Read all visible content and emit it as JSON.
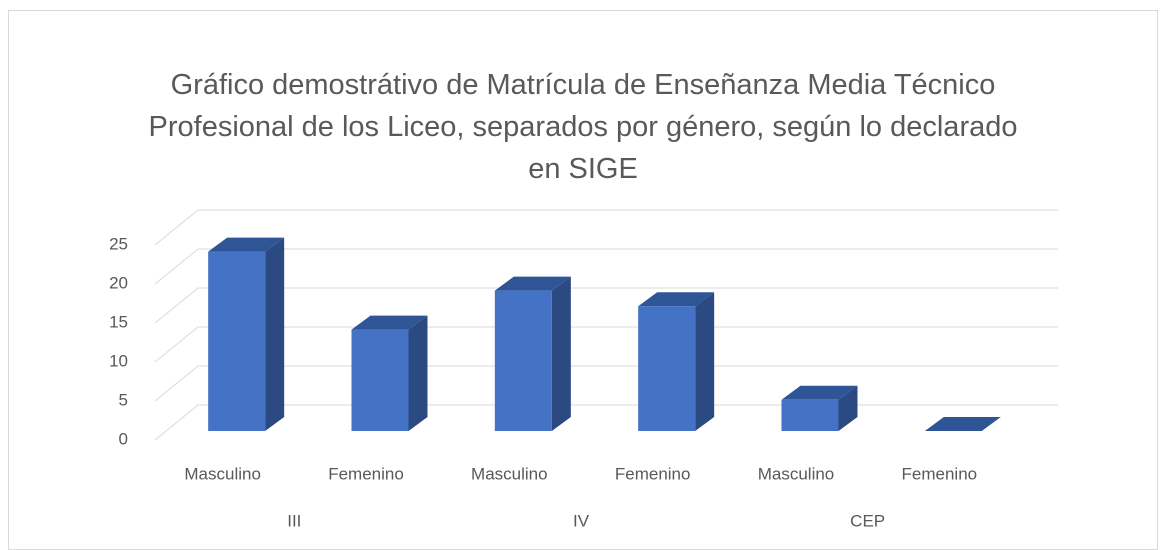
{
  "chart_data": {
    "type": "bar3d",
    "title": "Gráfico demostrátivo de Matrícula de Enseñanza Media Técnico Profesional de los Liceo, separados por género, según lo declarado en SIGE",
    "categories": [
      "Masculino",
      "Femenino",
      "Masculino",
      "Femenino",
      "Masculino",
      "Femenino"
    ],
    "groups": [
      "III",
      "IV",
      "CEP"
    ],
    "values": [
      23,
      13,
      18,
      16,
      4,
      0
    ],
    "color": "#4472c4",
    "ylim": [
      0,
      25
    ],
    "yticks": [
      0,
      5,
      10,
      15,
      20,
      25
    ],
    "grid": true
  }
}
